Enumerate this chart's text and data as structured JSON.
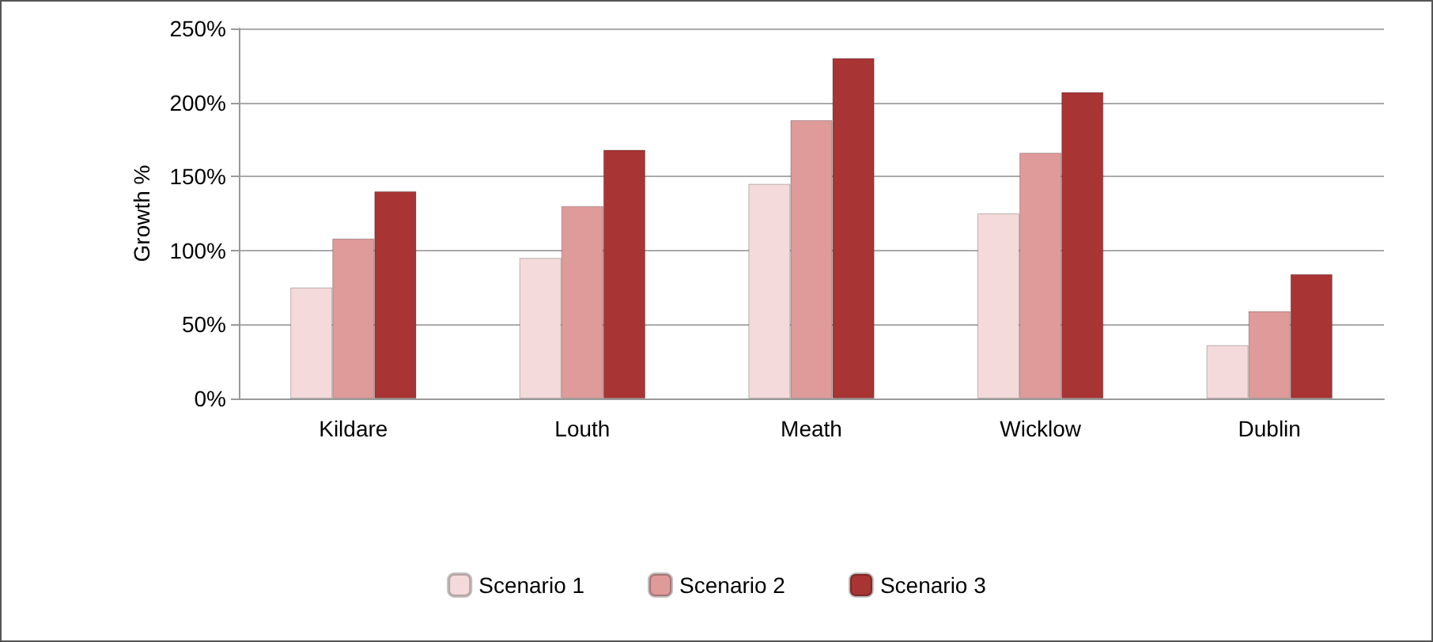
{
  "chart_data": {
    "type": "bar",
    "ylabel": "Growth %",
    "categories": [
      "Kildare",
      "Louth",
      "Meath",
      "Wicklow",
      "Dublin"
    ],
    "series": [
      {
        "name": "Scenario 1",
        "color": "#f4dada",
        "values": [
          75,
          95,
          145,
          125,
          36
        ]
      },
      {
        "name": "Scenario 2",
        "color": "#df9a9a",
        "values": [
          108,
          130,
          188,
          166,
          59
        ]
      },
      {
        "name": "Scenario 3",
        "color": "#a83434",
        "values": [
          140,
          168,
          230,
          207,
          84
        ]
      }
    ],
    "ylim": [
      0,
      250
    ],
    "yticks": [
      {
        "value": 0,
        "label": "0%"
      },
      {
        "value": 50,
        "label": "50%"
      },
      {
        "value": 100,
        "label": "100%"
      },
      {
        "value": 150,
        "label": "150%"
      },
      {
        "value": 200,
        "label": "200%"
      },
      {
        "value": 250,
        "label": "250%"
      }
    ],
    "grid": "y",
    "legend": "bottom"
  }
}
